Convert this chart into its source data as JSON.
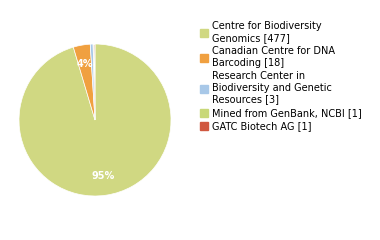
{
  "labels": [
    "Centre for Biodiversity\nGenomics [477]",
    "Canadian Centre for DNA\nBarcoding [18]",
    "Research Center in\nBiodiversity and Genetic\nResources [3]",
    "Mined from GenBank, NCBI [1]",
    "GATC Biotech AG [1]"
  ],
  "values": [
    477,
    18,
    3,
    1,
    1
  ],
  "colors": [
    "#d0d882",
    "#f0a040",
    "#a8c8e8",
    "#c8d878",
    "#d05840"
  ],
  "autopct_fontsize": 7,
  "legend_fontsize": 7,
  "figsize": [
    3.8,
    2.4
  ],
  "dpi": 100
}
